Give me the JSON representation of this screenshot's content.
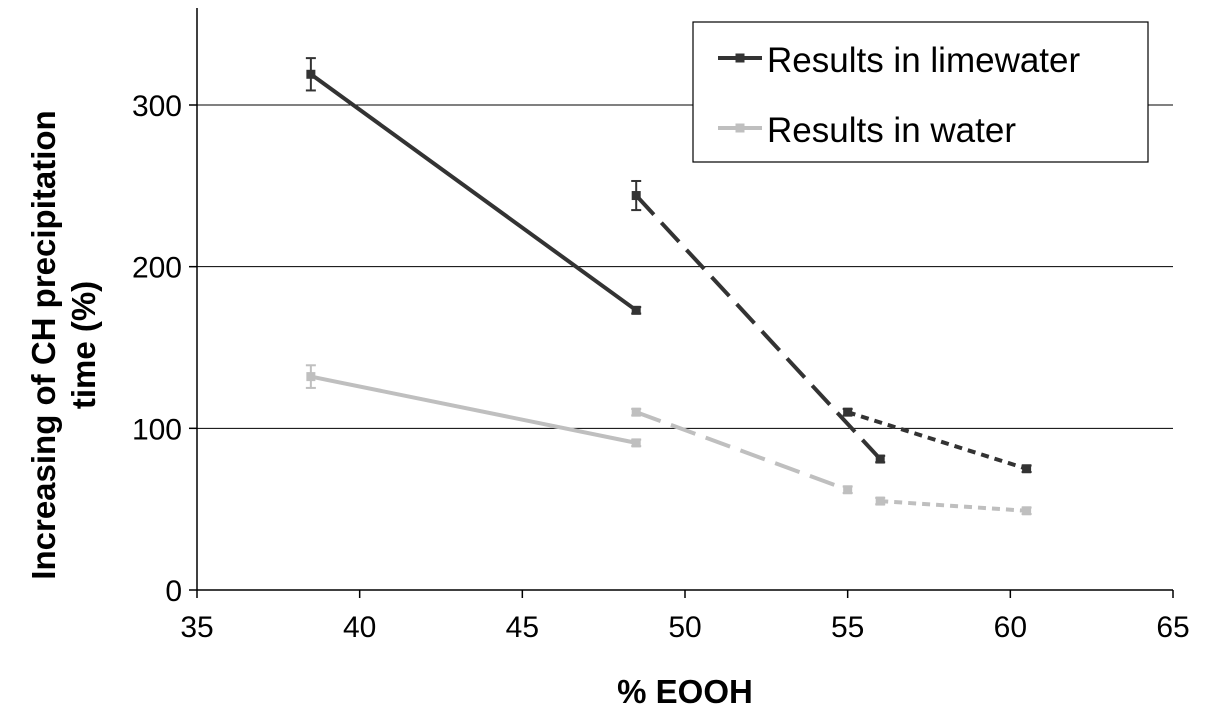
{
  "chart_data": {
    "type": "line",
    "xlabel": "% EOOH",
    "ylabel": "Increasing of CH precipitation time (%)",
    "ylabel_lines": [
      "Increasing of CH precipitation",
      "time (%)"
    ],
    "xlim": [
      35,
      65
    ],
    "ylim": [
      0,
      360
    ],
    "xticks": [
      35,
      40,
      45,
      50,
      55,
      60,
      65
    ],
    "yticks": [
      0,
      100,
      200,
      300
    ],
    "grid": "horizontal",
    "legend_position": "top-right",
    "legend": [
      {
        "label": "Results in limewater",
        "color": "#333333"
      },
      {
        "label": "Results in water",
        "color": "#bfbfbf"
      }
    ],
    "series": [
      {
        "group": "Results in limewater",
        "style": "solid",
        "color": "#333333",
        "points": [
          {
            "x": 38.5,
            "y": 319,
            "err": 10
          },
          {
            "x": 48.5,
            "y": 173,
            "err": 2
          }
        ]
      },
      {
        "group": "Results in limewater",
        "style": "dashed",
        "color": "#333333",
        "points": [
          {
            "x": 48.5,
            "y": 244,
            "err": 9
          },
          {
            "x": 56,
            "y": 81,
            "err": 2
          }
        ]
      },
      {
        "group": "Results in limewater",
        "style": "dotted",
        "color": "#333333",
        "points": [
          {
            "x": 55,
            "y": 110,
            "err": 2
          },
          {
            "x": 60.5,
            "y": 75,
            "err": 2
          }
        ]
      },
      {
        "group": "Results in water",
        "style": "solid",
        "color": "#bfbfbf",
        "points": [
          {
            "x": 38.5,
            "y": 132,
            "err": 7
          },
          {
            "x": 48.5,
            "y": 91,
            "err": 2
          }
        ]
      },
      {
        "group": "Results in water",
        "style": "dashed",
        "color": "#bfbfbf",
        "points": [
          {
            "x": 48.5,
            "y": 110,
            "err": 2
          },
          {
            "x": 55,
            "y": 62,
            "err": 2
          }
        ]
      },
      {
        "group": "Results in water",
        "style": "dotted",
        "color": "#bfbfbf",
        "points": [
          {
            "x": 56,
            "y": 55,
            "err": 2
          },
          {
            "x": 60.5,
            "y": 49,
            "err": 2
          }
        ]
      }
    ]
  }
}
